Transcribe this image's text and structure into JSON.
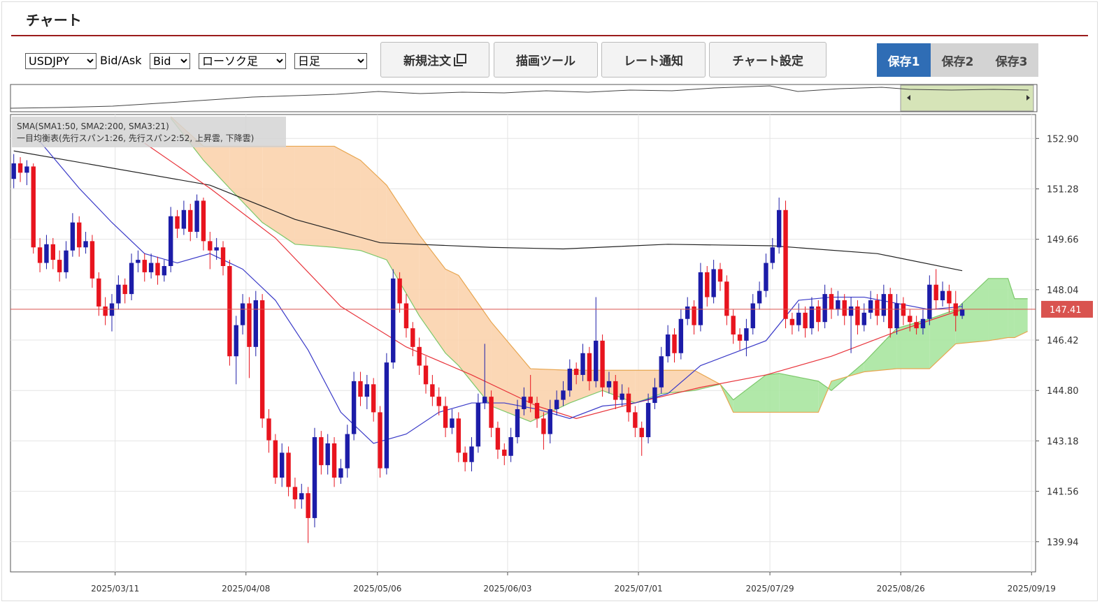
{
  "header": {
    "title": "チャート"
  },
  "controls": {
    "symbol": "USDJPY",
    "bid_ask_label": "Bid/Ask",
    "price_side": "Bid",
    "chart_kind": "ローソク足",
    "timeframe": "日足"
  },
  "buttons": [
    "新規注文",
    "描画ツール",
    "レート通知",
    "チャート設定"
  ],
  "save_tabs": [
    "保存1",
    "保存2",
    "保存3"
  ],
  "chart_data": {
    "type": "candlestick",
    "legend_lines": [
      "SMA(SMA1:50, SMA2:200, SMA3:21)",
      "一目均衡表(先行スパン1:26, 先行スパン2:52, 上昇雲, 下降雲)"
    ],
    "up_color": "#1c1ca8",
    "down_color": "#e8141e",
    "xlim": [
      -0.5,
      156
    ],
    "ylim": [
      138.97,
      153.67
    ],
    "xticks": [
      {
        "value": 15.5,
        "label": "2025/03/11"
      },
      {
        "value": 35.5,
        "label": "2025/04/08"
      },
      {
        "value": 55.6,
        "label": "2025/05/06"
      },
      {
        "value": 75.5,
        "label": "2025/06/03"
      },
      {
        "value": 95.5,
        "label": "2025/07/01"
      },
      {
        "value": 115.6,
        "label": "2025/07/29"
      },
      {
        "value": 135.6,
        "label": "2025/08/26"
      },
      {
        "value": 155.6,
        "label": "2025/09/19"
      }
    ],
    "yticks": [
      {
        "value": 152.9,
        "label": "152.90"
      },
      151.28,
      {
        "value": 149.66,
        "label": "149.66"
      },
      {
        "value": 148.04,
        "label": "148.04"
      },
      146.42,
      {
        "value": 144.8,
        "label": "144.80"
      },
      143.18,
      141.56,
      139.94
    ],
    "grid": true,
    "last_price": 147.41,
    "last_price_color": "#d9534f",
    "ohlc": [
      [
        151.6,
        152.4,
        151.3,
        152.1
      ],
      [
        152.1,
        152.3,
        151.5,
        151.8
      ],
      [
        151.8,
        152.2,
        151.4,
        152.0
      ],
      [
        152.0,
        152.1,
        149.2,
        149.4
      ],
      [
        149.4,
        149.7,
        148.6,
        148.9
      ],
      [
        148.9,
        149.8,
        148.7,
        149.5
      ],
      [
        149.5,
        149.7,
        148.7,
        149.0
      ],
      [
        149.0,
        149.3,
        148.3,
        148.6
      ],
      [
        148.6,
        149.6,
        148.4,
        149.3
      ],
      [
        149.3,
        150.5,
        149.1,
        150.2
      ],
      [
        150.2,
        150.4,
        149.1,
        149.4
      ],
      [
        149.4,
        149.9,
        149.2,
        149.6
      ],
      [
        149.6,
        149.8,
        148.1,
        148.4
      ],
      [
        148.4,
        148.6,
        147.2,
        147.5
      ],
      [
        147.5,
        147.8,
        146.9,
        147.2
      ],
      [
        147.2,
        147.9,
        146.7,
        147.6
      ],
      [
        147.6,
        148.5,
        147.4,
        148.2
      ],
      [
        148.2,
        148.4,
        147.6,
        147.9
      ],
      [
        147.9,
        149.2,
        147.7,
        148.9
      ],
      [
        148.9,
        149.3,
        148.6,
        149.0
      ],
      [
        149.0,
        149.2,
        148.3,
        148.6
      ],
      [
        148.6,
        149.2,
        148.4,
        148.9
      ],
      [
        148.9,
        149.1,
        148.2,
        148.5
      ],
      [
        148.5,
        149.0,
        148.3,
        148.8
      ],
      [
        148.8,
        150.7,
        148.6,
        150.4
      ],
      [
        150.4,
        150.6,
        149.7,
        150.0
      ],
      [
        150.0,
        150.9,
        149.8,
        150.6
      ],
      [
        150.6,
        150.8,
        149.6,
        149.9
      ],
      [
        149.9,
        151.1,
        149.7,
        150.9
      ],
      [
        150.9,
        151.0,
        149.3,
        149.6
      ],
      [
        149.6,
        149.9,
        148.7,
        149.3
      ],
      [
        149.3,
        149.7,
        149.0,
        149.4
      ],
      [
        149.4,
        149.6,
        148.5,
        148.8
      ],
      [
        148.8,
        149.0,
        145.6,
        145.9
      ],
      [
        145.9,
        147.2,
        145.0,
        146.9
      ],
      [
        146.9,
        147.9,
        146.6,
        147.6
      ],
      [
        147.6,
        147.8,
        145.2,
        146.2
      ],
      [
        146.2,
        148.0,
        145.9,
        147.7
      ],
      [
        147.7,
        147.9,
        143.6,
        143.9
      ],
      [
        143.9,
        144.2,
        142.8,
        143.2
      ],
      [
        143.2,
        143.4,
        141.8,
        142.0
      ],
      [
        142.0,
        143.1,
        141.7,
        142.8
      ],
      [
        142.8,
        143.0,
        141.4,
        141.7
      ],
      [
        141.7,
        142.0,
        141.0,
        141.3
      ],
      [
        141.3,
        141.8,
        141.0,
        141.5
      ],
      [
        141.5,
        141.7,
        139.9,
        140.7
      ],
      [
        140.7,
        143.6,
        140.4,
        143.3
      ],
      [
        143.3,
        143.5,
        142.1,
        142.4
      ],
      [
        142.4,
        143.4,
        142.1,
        143.1
      ],
      [
        143.1,
        143.3,
        141.7,
        142.0
      ],
      [
        142.0,
        142.6,
        141.8,
        142.3
      ],
      [
        142.3,
        143.7,
        142.0,
        143.4
      ],
      [
        143.4,
        145.4,
        143.2,
        145.1
      ],
      [
        145.1,
        145.4,
        144.3,
        144.6
      ],
      [
        144.6,
        145.3,
        144.2,
        145.0
      ],
      [
        145.0,
        145.2,
        143.8,
        144.1
      ],
      [
        144.1,
        144.3,
        142.0,
        142.3
      ],
      [
        142.3,
        146.0,
        142.1,
        145.7
      ],
      [
        145.7,
        148.7,
        145.5,
        148.4
      ],
      [
        148.4,
        148.6,
        147.3,
        147.6
      ],
      [
        147.6,
        147.9,
        146.5,
        146.8
      ],
      [
        146.8,
        147.0,
        145.9,
        146.2
      ],
      [
        146.2,
        146.5,
        145.3,
        145.6
      ],
      [
        145.6,
        145.9,
        144.7,
        145.0
      ],
      [
        145.0,
        145.3,
        144.3,
        144.6
      ],
      [
        144.6,
        144.9,
        144.0,
        144.3
      ],
      [
        144.3,
        144.6,
        143.3,
        143.6
      ],
      [
        143.6,
        144.2,
        143.4,
        143.9
      ],
      [
        143.9,
        144.1,
        142.5,
        142.8
      ],
      [
        142.8,
        143.0,
        142.2,
        142.5
      ],
      [
        142.5,
        143.3,
        142.2,
        143.0
      ],
      [
        143.0,
        144.7,
        142.8,
        144.4
      ],
      [
        144.4,
        146.3,
        144.2,
        144.6
      ],
      [
        144.6,
        144.8,
        143.3,
        143.6
      ],
      [
        143.6,
        143.8,
        142.6,
        142.9
      ],
      [
        142.9,
        143.1,
        142.4,
        142.7
      ],
      [
        142.7,
        143.6,
        142.5,
        143.3
      ],
      [
        143.3,
        144.5,
        143.1,
        144.2
      ],
      [
        144.2,
        144.9,
        144.0,
        144.6
      ],
      [
        144.6,
        145.3,
        144.1,
        144.4
      ],
      [
        144.4,
        144.6,
        143.6,
        143.9
      ],
      [
        143.9,
        144.1,
        142.9,
        143.4
      ],
      [
        143.4,
        144.5,
        143.1,
        144.2
      ],
      [
        144.2,
        144.8,
        144.0,
        144.5
      ],
      [
        144.5,
        145.1,
        144.3,
        144.8
      ],
      [
        144.8,
        145.8,
        144.6,
        145.5
      ],
      [
        145.5,
        145.7,
        145.0,
        145.3
      ],
      [
        145.3,
        146.3,
        145.1,
        146.0
      ],
      [
        146.0,
        146.2,
        144.8,
        145.1
      ],
      [
        145.1,
        147.8,
        144.9,
        146.4
      ],
      [
        146.4,
        146.6,
        144.6,
        144.9
      ],
      [
        144.9,
        145.4,
        144.7,
        145.1
      ],
      [
        145.1,
        145.3,
        144.2,
        144.5
      ],
      [
        144.5,
        145.0,
        144.3,
        144.7
      ],
      [
        144.7,
        144.9,
        143.8,
        144.1
      ],
      [
        144.1,
        144.3,
        143.3,
        143.6
      ],
      [
        143.6,
        143.8,
        142.7,
        143.3
      ],
      [
        143.3,
        144.7,
        143.1,
        144.4
      ],
      [
        144.4,
        145.2,
        144.2,
        144.9
      ],
      [
        144.9,
        146.2,
        144.7,
        145.9
      ],
      [
        145.9,
        146.9,
        145.7,
        146.6
      ],
      [
        146.6,
        146.8,
        145.7,
        146.0
      ],
      [
        146.0,
        147.4,
        145.8,
        147.1
      ],
      [
        147.1,
        147.8,
        146.9,
        147.5
      ],
      [
        147.5,
        147.7,
        146.6,
        146.9
      ],
      [
        146.9,
        148.9,
        146.7,
        148.6
      ],
      [
        148.6,
        148.8,
        147.5,
        147.8
      ],
      [
        147.8,
        149.0,
        147.6,
        148.7
      ],
      [
        148.7,
        148.9,
        148.0,
        148.3
      ],
      [
        148.3,
        148.5,
        146.9,
        147.2
      ],
      [
        147.2,
        147.4,
        146.3,
        146.6
      ],
      [
        146.6,
        146.8,
        146.1,
        146.4
      ],
      [
        146.4,
        147.1,
        145.9,
        146.8
      ],
      [
        146.8,
        147.9,
        146.6,
        147.6
      ],
      [
        147.6,
        148.3,
        147.4,
        148.0
      ],
      [
        148.0,
        149.2,
        147.8,
        148.9
      ],
      [
        148.9,
        149.7,
        148.7,
        149.4
      ],
      [
        149.4,
        151.0,
        149.2,
        150.6
      ],
      [
        150.6,
        150.9,
        146.8,
        147.1
      ],
      [
        147.1,
        147.3,
        146.6,
        146.9
      ],
      [
        146.9,
        147.6,
        146.7,
        147.3
      ],
      [
        147.3,
        147.5,
        146.5,
        146.8
      ],
      [
        146.8,
        147.8,
        146.6,
        147.5
      ],
      [
        147.5,
        147.7,
        146.7,
        147.0
      ],
      [
        147.0,
        148.2,
        146.8,
        147.9
      ],
      [
        147.9,
        148.1,
        147.1,
        147.4
      ],
      [
        147.4,
        148.0,
        147.2,
        147.7
      ],
      [
        147.7,
        147.9,
        146.9,
        147.2
      ],
      [
        147.2,
        147.8,
        146.0,
        147.5
      ],
      [
        147.5,
        147.7,
        146.6,
        146.9
      ],
      [
        146.9,
        147.6,
        146.7,
        147.3
      ],
      [
        147.3,
        148.0,
        147.1,
        147.7
      ],
      [
        147.7,
        147.9,
        146.9,
        147.2
      ],
      [
        147.2,
        148.2,
        147.0,
        147.9
      ],
      [
        147.9,
        148.1,
        146.5,
        146.8
      ],
      [
        146.8,
        147.9,
        146.6,
        147.6
      ],
      [
        147.6,
        147.8,
        146.9,
        147.2
      ],
      [
        147.2,
        147.4,
        146.7,
        147.0
      ],
      [
        147.0,
        147.2,
        146.6,
        146.8
      ],
      [
        146.8,
        147.4,
        146.6,
        147.1
      ],
      [
        147.1,
        148.5,
        146.9,
        148.2
      ],
      [
        148.2,
        148.7,
        147.4,
        147.7
      ],
      [
        147.7,
        148.3,
        147.5,
        148.0
      ],
      [
        148.0,
        148.2,
        147.3,
        147.6
      ],
      [
        147.6,
        148.0,
        146.7,
        147.2
      ],
      [
        147.2,
        147.6,
        147.1,
        147.41
      ]
    ],
    "series": [
      {
        "color": "#222222",
        "x": [
          0,
          30,
          43,
          56,
          73,
          84,
          100,
          116,
          132,
          145
        ],
        "values": [
          152.5,
          151.4,
          150.3,
          149.55,
          149.4,
          149.35,
          149.5,
          149.45,
          149.2,
          148.65
        ]
      },
      {
        "color": "#e8333a",
        "x": [
          20,
          30,
          40,
          50,
          60,
          70,
          80,
          86,
          95,
          105,
          115,
          125,
          135,
          145
        ],
        "values": [
          152.75,
          151.3,
          149.7,
          147.5,
          146.2,
          145.3,
          144.3,
          143.9,
          144.4,
          144.9,
          145.3,
          145.9,
          146.7,
          147.4
        ]
      },
      {
        "color": "#3a3ac8",
        "x": [
          4,
          10,
          15,
          20,
          25,
          30,
          35,
          40,
          45,
          50,
          55,
          60,
          65,
          70,
          75,
          80,
          85,
          90,
          95,
          100,
          105,
          110,
          115,
          120,
          125,
          130,
          135,
          140,
          145
        ],
        "values": [
          152.8,
          151.3,
          150.2,
          149.2,
          148.9,
          149.2,
          148.7,
          147.7,
          146.1,
          144.1,
          143.1,
          143.4,
          144.1,
          144.4,
          144.4,
          144.2,
          143.9,
          144.3,
          144.4,
          144.7,
          145.6,
          146.0,
          146.4,
          147.7,
          147.8,
          147.8,
          147.6,
          147.4,
          147.5
        ]
      }
    ],
    "ichimoku": {
      "x": [
        24,
        29,
        33,
        38,
        43,
        49,
        53,
        57,
        62,
        66,
        68,
        73,
        79,
        85,
        90,
        95,
        99,
        104,
        108,
        110,
        115,
        117,
        123,
        125,
        130,
        135,
        140,
        144,
        149,
        152,
        153,
        155
      ],
      "span1": {
        "color": "#7cc86a",
        "values": [
          153.55,
          152.2,
          151.3,
          150.2,
          149.5,
          149.4,
          149.3,
          149.0,
          147.2,
          146.0,
          145.6,
          144.3,
          143.8,
          144.4,
          144.8,
          144.4,
          144.7,
          144.8,
          145.0,
          144.5,
          145.3,
          145.35,
          145.1,
          144.8,
          145.7,
          146.8,
          147.1,
          147.4,
          148.4,
          148.4,
          147.75,
          147.75
        ]
      },
      "span2": {
        "color": "#e8a650",
        "values": [
          153.6,
          152.65,
          152.65,
          152.65,
          152.65,
          152.65,
          152.2,
          151.4,
          149.8,
          148.7,
          148.5,
          147.0,
          145.5,
          145.45,
          145.45,
          145.45,
          145.45,
          145.45,
          145.0,
          144.1,
          144.1,
          144.1,
          144.1,
          145.1,
          145.4,
          145.5,
          145.5,
          146.3,
          146.4,
          146.5,
          146.5,
          146.7
        ]
      },
      "up_cloud_color": "#a8e6a0",
      "down_cloud_color": "#fbd3ad"
    }
  }
}
